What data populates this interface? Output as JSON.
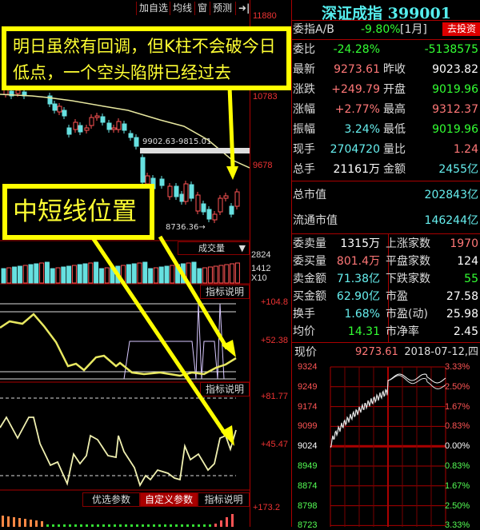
{
  "toolbar": {
    "items": [
      "加自选",
      "均线",
      "窗",
      "预测"
    ],
    "exit_icon": "exit-arrow-icon"
  },
  "price_axis": [
    "11880",
    "10783",
    "9678"
  ],
  "annotations": {
    "gap_label": "9902.63-9815.01",
    "low_label": "8736.36"
  },
  "callouts": {
    "top": "明日虽然有回调，但K柱不会破今日低点，一个空头陷阱已经过去",
    "middle": "中短线位置"
  },
  "volume": {
    "title": "成交量",
    "axis": [
      "2824",
      "1412",
      "X10"
    ]
  },
  "indicator1": {
    "button": "指标说明",
    "axis": [
      "+104.8",
      "+52.38"
    ]
  },
  "indicator2": {
    "button": "指标说明",
    "axis": [
      "+81.77",
      "+45.47"
    ]
  },
  "indicator3": {
    "buttons": [
      "优选参数",
      "自定义参数",
      "指标说明"
    ],
    "axis": [
      "+173.2"
    ]
  },
  "quote": {
    "title": "深证成指 399001",
    "weizhi_label": "委指A/B",
    "weizhi_value": "-9.80%",
    "weizhi_period": "[1月]",
    "invest_button": "去投资",
    "rows": [
      {
        "l1": "委比",
        "v1": "-24.28%",
        "l2": "",
        "v2": "-5138575"
      },
      {
        "l1": "最新",
        "v1": "9273.61",
        "l2": "昨收",
        "v2": "9023.82"
      },
      {
        "l1": "涨跌",
        "v1": "+249.79",
        "l2": "开盘",
        "v2": "9019.96"
      },
      {
        "l1": "涨幅",
        "v1": "+2.77%",
        "l2": "最高",
        "v2": "9312.37"
      },
      {
        "l1": "振幅",
        "v1": "3.24%",
        "l2": "最低",
        "v2": "9019.96"
      },
      {
        "l1": "现手",
        "v1": "2704720",
        "l2": "量比",
        "v2": "1.24"
      },
      {
        "l1": "总手",
        "v1": "21161万",
        "l2": "金额",
        "v2": "2455亿"
      }
    ],
    "cap": [
      {
        "l": "总市值",
        "v": "202843亿"
      },
      {
        "l": "流通市值",
        "v": "146244亿"
      }
    ],
    "rows2": [
      {
        "l1": "委卖量",
        "v1": "1315万",
        "l2": "上涨家数",
        "v2": "1970"
      },
      {
        "l1": "委买量",
        "v1": "801.4万",
        "l2": "平盘家数",
        "v2": "124"
      },
      {
        "l1": "卖金额",
        "v1": "71.38亿",
        "l2": "下跌家数",
        "v2": "55"
      },
      {
        "l1": "买金额",
        "v1": "62.90亿",
        "l2": "市盈",
        "v2": "27.58"
      },
      {
        "l1": "换手",
        "v1": "1.68%",
        "l2": "市盈(动)",
        "v2": "25.98"
      },
      {
        "l1": "均价",
        "v1": "14.31",
        "l2": "市净率",
        "v2": "2.45"
      }
    ],
    "now_label": "现价",
    "now_value": "9273.61",
    "date": "2018-07-12,四"
  },
  "intraday": {
    "left": [
      "9324",
      "9249",
      "9174",
      "9099",
      "9024",
      "8949",
      "8874",
      "8798",
      "8723"
    ],
    "right": [
      "3.33%",
      "2.50%",
      "1.67%",
      "0.83%",
      "0.00%",
      "0.83%",
      "1.67%",
      "2.50%",
      "3.33%"
    ]
  },
  "colors": {
    "up": "#ff5555",
    "down": "#66e0e0",
    "ma": "#e8e8a0",
    "callout": "#ffff00",
    "grid": "#aa0000"
  }
}
